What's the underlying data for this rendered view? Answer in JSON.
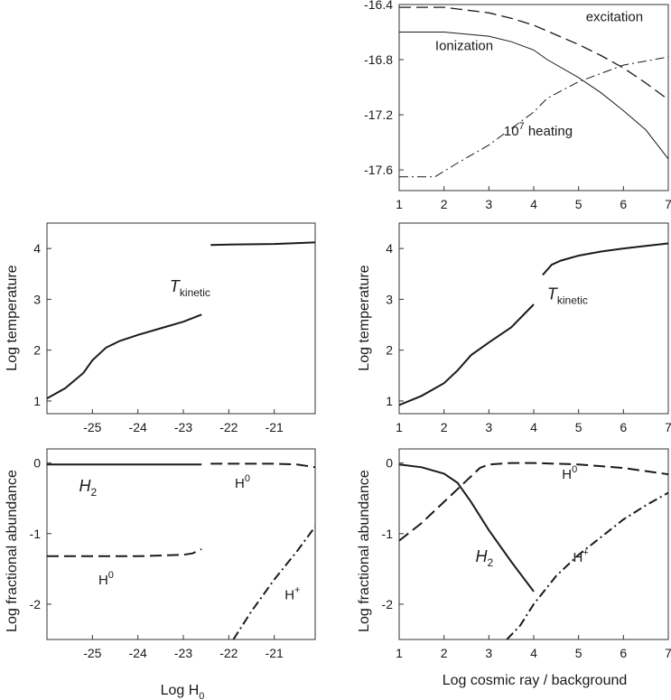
{
  "figure": {
    "background": "#ffffff",
    "line_color": "#1a1a1a"
  },
  "chart_data": [
    {
      "panel": "top-right",
      "type": "line",
      "title": "",
      "xlabel": "",
      "ylabel": "",
      "xlim": [
        1,
        7
      ],
      "ylim": [
        -17.75,
        -16.4
      ],
      "xticks": [
        "1",
        "2",
        "3",
        "4",
        "5",
        "6",
        "7"
      ],
      "xtick_values": [
        1,
        2,
        3,
        4,
        5,
        6,
        7
      ],
      "yticks": [
        "-16.4",
        "-16.8",
        "-17.2",
        "-17.6"
      ],
      "ytick_values": [
        -16.4,
        -16.8,
        -17.2,
        -17.6
      ],
      "series": [
        {
          "name": "excitation",
          "dash": "long-dash",
          "width": 1.3,
          "x": [
            1,
            2,
            3,
            3.5,
            4,
            4.5,
            5,
            5.5,
            6,
            6.5,
            7
          ],
          "y": [
            -16.42,
            -16.42,
            -16.46,
            -16.5,
            -16.55,
            -16.62,
            -16.69,
            -16.77,
            -16.86,
            -16.97,
            -17.09
          ]
        },
        {
          "name": "Ionization",
          "dash": "solid",
          "width": 1,
          "x": [
            1,
            2,
            3,
            3.5,
            4,
            4.3,
            5,
            5.5,
            6,
            6.5,
            7
          ],
          "y": [
            -16.6,
            -16.6,
            -16.63,
            -16.67,
            -16.73,
            -16.8,
            -16.93,
            -17.04,
            -17.17,
            -17.31,
            -17.52
          ]
        },
        {
          "name": "10^7 heating",
          "dash": "dash-dot",
          "width": 1,
          "x": [
            1,
            1.8,
            2.3,
            3,
            3.5,
            4,
            4.3,
            5,
            5.5,
            6,
            6.5,
            7
          ],
          "y": [
            -17.65,
            -17.65,
            -17.55,
            -17.42,
            -17.3,
            -17.18,
            -17.08,
            -16.96,
            -16.9,
            -16.84,
            -16.81,
            -16.78
          ]
        }
      ],
      "annotations": [
        {
          "text": "excitation",
          "x": 5.8,
          "y": -16.52,
          "anchor": "middle"
        },
        {
          "text": "Ionization",
          "x": 2.45,
          "y": -16.73,
          "anchor": "middle"
        },
        {
          "text": "10",
          "sup": "7",
          "rest": " heating",
          "x": 4.1,
          "y": -17.35,
          "anchor": "middle"
        }
      ]
    },
    {
      "panel": "middle-left",
      "type": "line",
      "xlabel": "",
      "ylabel": "Log temperature",
      "xlim": [
        -26,
        -20.1
      ],
      "ylim": [
        0.75,
        4.5
      ],
      "xticks": [
        "-25",
        "-24",
        "-23",
        "-22",
        "-21"
      ],
      "xtick_values": [
        -25,
        -24,
        -23,
        -22,
        -21
      ],
      "yticks": [
        "1",
        "2",
        "3",
        "4"
      ],
      "ytick_values": [
        1,
        2,
        3,
        4
      ],
      "series": [
        {
          "name": "T kinetic low",
          "dash": "solid",
          "width": 2,
          "x": [
            -26,
            -25.6,
            -25.2,
            -25,
            -24.7,
            -24.4,
            -24,
            -23.5,
            -23,
            -22.6
          ],
          "y": [
            1.05,
            1.25,
            1.55,
            1.8,
            2.05,
            2.18,
            2.3,
            2.43,
            2.56,
            2.7
          ]
        },
        {
          "name": "T kinetic high",
          "dash": "solid",
          "width": 2,
          "x": [
            -22.4,
            -21.8,
            -21,
            -20.1
          ],
          "y": [
            4.07,
            4.08,
            4.09,
            4.12
          ]
        }
      ],
      "annotations": [
        {
          "text": "T",
          "sub": "kinetic",
          "x": -23.3,
          "y": 3.15,
          "anchor": "start"
        }
      ]
    },
    {
      "panel": "middle-right",
      "type": "line",
      "xlabel": "",
      "ylabel": "Log temperature",
      "xlim": [
        1,
        7
      ],
      "ylim": [
        0.75,
        4.5
      ],
      "xticks": [
        "1",
        "2",
        "3",
        "4",
        "5",
        "6",
        "7"
      ],
      "xtick_values": [
        1,
        2,
        3,
        4,
        5,
        6,
        7
      ],
      "yticks": [
        "1",
        "2",
        "3",
        "4"
      ],
      "ytick_values": [
        1,
        2,
        3,
        4
      ],
      "series": [
        {
          "name": "T kinetic low",
          "dash": "solid",
          "width": 2,
          "x": [
            1,
            1.5,
            2,
            2.3,
            2.6,
            3,
            3.5,
            4
          ],
          "y": [
            0.92,
            1.1,
            1.35,
            1.6,
            1.9,
            2.15,
            2.45,
            2.9
          ]
        },
        {
          "name": "T kinetic high",
          "dash": "solid",
          "width": 2,
          "x": [
            4.2,
            4.4,
            4.6,
            5,
            5.5,
            6,
            6.5,
            7
          ],
          "y": [
            3.48,
            3.68,
            3.76,
            3.86,
            3.94,
            4.0,
            4.05,
            4.1
          ]
        }
      ],
      "annotations": [
        {
          "text": "T",
          "sub": "kinetic",
          "x": 4.3,
          "y": 3.0,
          "anchor": "start"
        }
      ]
    },
    {
      "panel": "bottom-left",
      "type": "line",
      "xlabel": "Log H0",
      "xlabel_base": "Log H",
      "xlabel_sub": "0",
      "ylabel": "Log fractional abundance",
      "xlim": [
        -26,
        -20.1
      ],
      "ylim": [
        -2.5,
        0.2
      ],
      "xticks": [
        "-25",
        "-24",
        "-23",
        "-22",
        "-21"
      ],
      "xtick_values": [
        -25,
        -24,
        -23,
        -22,
        -21
      ],
      "yticks": [
        "0",
        "-1",
        "-2"
      ],
      "ytick_values": [
        0,
        -1,
        -2
      ],
      "series": [
        {
          "name": "H2",
          "dash": "solid",
          "width": 2,
          "x": [
            -26,
            -22.6
          ],
          "y": [
            -0.02,
            -0.02
          ]
        },
        {
          "name": "H0 high",
          "dash": "long-dash",
          "width": 2,
          "x": [
            -22.4,
            -21.5,
            -21,
            -20.5,
            -20.1
          ],
          "y": [
            -0.01,
            -0.01,
            -0.01,
            -0.02,
            -0.06
          ]
        },
        {
          "name": "H0 low",
          "dash": "long-dash",
          "width": 2,
          "x": [
            -26,
            -24,
            -23,
            -22.8,
            -22.6
          ],
          "y": [
            -1.32,
            -1.32,
            -1.3,
            -1.28,
            -1.22
          ]
        },
        {
          "name": "H+",
          "dash": "dash-dot",
          "width": 2,
          "x": [
            -21.9,
            -21.5,
            -21,
            -20.5,
            -20.1
          ],
          "y": [
            -2.5,
            -2.1,
            -1.65,
            -1.25,
            -0.9
          ]
        }
      ],
      "annotations": [
        {
          "text": "H",
          "sub": "2",
          "x": -25.1,
          "y": -0.4,
          "anchor": "middle"
        },
        {
          "text": "H",
          "sup": "0",
          "x": -21.7,
          "y": -0.35,
          "anchor": "middle"
        },
        {
          "text": "H",
          "sup": "0",
          "x": -24.7,
          "y": -1.72,
          "anchor": "middle"
        },
        {
          "text": "H",
          "sup": "+",
          "x": -20.6,
          "y": -1.93,
          "anchor": "middle"
        }
      ]
    },
    {
      "panel": "bottom-right",
      "type": "line",
      "xlabel": "Log cosmic ray / background",
      "ylabel": "Log fractional abundance",
      "xlim": [
        1,
        7
      ],
      "ylim": [
        -2.5,
        0.2
      ],
      "xticks": [
        "1",
        "2",
        "3",
        "4",
        "5",
        "6",
        "7"
      ],
      "xtick_values": [
        1,
        2,
        3,
        4,
        5,
        6,
        7
      ],
      "yticks": [
        "0",
        "-1",
        "-2"
      ],
      "ytick_values": [
        0,
        -1,
        -2
      ],
      "series": [
        {
          "name": "H2",
          "dash": "solid",
          "width": 2,
          "x": [
            1,
            1.5,
            2,
            2.3,
            2.6,
            3,
            3.5,
            4
          ],
          "y": [
            -0.02,
            -0.06,
            -0.15,
            -0.28,
            -0.55,
            -0.95,
            -1.4,
            -1.82
          ]
        },
        {
          "name": "H0",
          "dash": "long-dash",
          "width": 2,
          "x": [
            1,
            1.5,
            2,
            2.5,
            2.8,
            3,
            3.5,
            4,
            5,
            6,
            7
          ],
          "y": [
            -1.1,
            -0.85,
            -0.55,
            -0.25,
            -0.07,
            -0.02,
            0.0,
            0.0,
            -0.02,
            -0.07,
            -0.16
          ]
        },
        {
          "name": "H+",
          "dash": "dash-dot",
          "width": 2,
          "x": [
            3.4,
            3.7,
            4,
            4.5,
            5,
            5.5,
            6,
            6.5,
            7
          ],
          "y": [
            -2.5,
            -2.3,
            -2.0,
            -1.6,
            -1.3,
            -1.05,
            -0.8,
            -0.6,
            -0.42
          ]
        }
      ],
      "annotations": [
        {
          "text": "H",
          "sup": "0",
          "x": 4.8,
          "y": -0.22,
          "anchor": "middle"
        },
        {
          "text": "H",
          "sub": "2",
          "x": 2.9,
          "y": -1.4,
          "anchor": "middle"
        },
        {
          "text": "H",
          "sup": "+",
          "x": 5.05,
          "y": -1.4,
          "anchor": "middle"
        }
      ]
    }
  ]
}
